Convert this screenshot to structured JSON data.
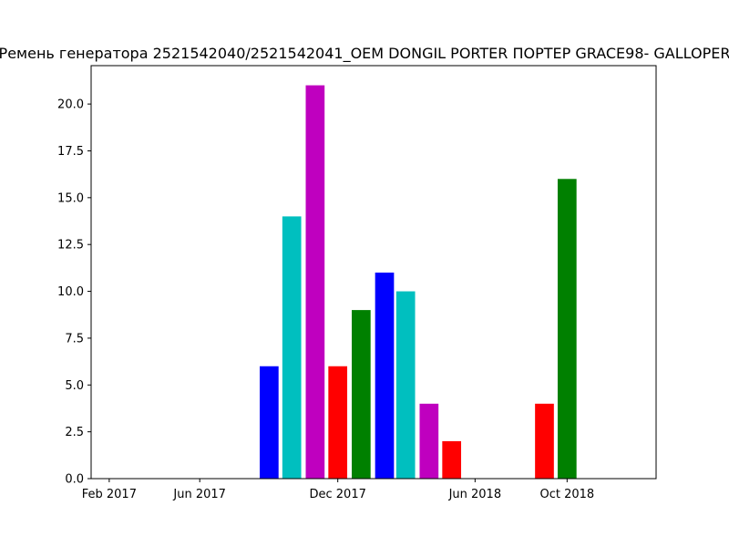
{
  "chart_data": {
    "type": "bar",
    "title": "Ремень генератора 2521542040/2521542041_OEM DONGIL PORTER ПОРТЕР GRACE98- GALLOPER",
    "xlabel": "",
    "ylabel": "",
    "x_axis_type": "date",
    "xlim": [
      "2017-01-08",
      "2019-01-27"
    ],
    "ylim": [
      0,
      22.05
    ],
    "x_tick_labels": [
      {
        "date": "2017-02-01",
        "label": "Feb 2017"
      },
      {
        "date": "2017-06-01",
        "label": "Jun 2017"
      },
      {
        "date": "2017-12-01",
        "label": "Dec 2017"
      },
      {
        "date": "2018-06-01",
        "label": "Jun 2018"
      },
      {
        "date": "2018-10-01",
        "label": "Oct 2018"
      }
    ],
    "y_ticks": [
      0.0,
      2.5,
      5.0,
      7.5,
      10.0,
      12.5,
      15.0,
      17.5,
      20.0
    ],
    "y_tick_labels": [
      "0.0",
      "2.5",
      "5.0",
      "7.5",
      "10.0",
      "12.5",
      "15.0",
      "17.5",
      "20.0"
    ],
    "grid": false,
    "legend": "none",
    "bars": [
      {
        "date": "2017-09-01",
        "value": 6,
        "color": "#0000ff"
      },
      {
        "date": "2017-10-01",
        "value": 14,
        "color": "#00bfbf"
      },
      {
        "date": "2017-11-01",
        "value": 21,
        "color": "#bf00bf"
      },
      {
        "date": "2017-12-01",
        "value": 6,
        "color": "#ff0000"
      },
      {
        "date": "2018-01-01",
        "value": 9,
        "color": "#008000"
      },
      {
        "date": "2018-02-01",
        "value": 11,
        "color": "#0000ff"
      },
      {
        "date": "2018-03-01",
        "value": 10,
        "color": "#00bfbf"
      },
      {
        "date": "2018-04-01",
        "value": 4,
        "color": "#bf00bf"
      },
      {
        "date": "2018-05-01",
        "value": 2,
        "color": "#ff0000"
      },
      {
        "date": "2018-09-01",
        "value": 4,
        "color": "#ff0000"
      },
      {
        "date": "2018-10-01",
        "value": 16,
        "color": "#008000"
      }
    ]
  }
}
